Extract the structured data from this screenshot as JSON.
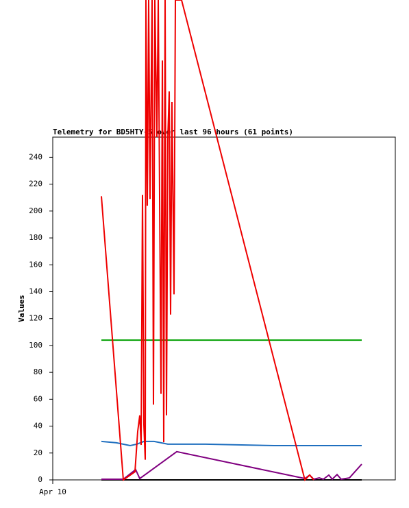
{
  "chart_data": {
    "type": "line",
    "title": "Telemetry for BD5HTY-5 over last 96 hours (61 points)",
    "y_label": "Values",
    "xlim": [
      0,
      500
    ],
    "xticks": [
      {
        "value": 0,
        "label": "Apr 10"
      }
    ],
    "ylim": [
      0,
      255
    ],
    "yticks": [
      0,
      20,
      40,
      60,
      80,
      100,
      120,
      140,
      160,
      180,
      200,
      220,
      240
    ],
    "series": [
      {
        "color": "#000000",
        "x": [
          71,
          451
        ],
        "values": [
          0,
          0
        ]
      },
      {
        "color": "#1f6fbf",
        "x": [
          71,
          93,
          113,
          123,
          133,
          148,
          168,
          223,
          323,
          451
        ],
        "values": [
          28.6,
          27.6,
          25.5,
          26.6,
          28.6,
          28.6,
          26.6,
          26.6,
          25.5,
          25.5
        ]
      },
      {
        "color": "#00a000",
        "x": [
          71,
          451
        ],
        "values": [
          104,
          104
        ]
      },
      {
        "color": "#800080",
        "x": [
          71,
          103,
          121,
          127,
          181,
          368,
          375,
          381,
          389,
          395,
          403,
          408,
          415,
          421,
          433,
          451
        ],
        "values": [
          0.5,
          0.5,
          7.7,
          1,
          21,
          1,
          3.6,
          0.5,
          1.5,
          0.5,
          3.6,
          0.5,
          4,
          0.5,
          1.5,
          11.7
        ]
      },
      {
        "color": "#ee0000",
        "x": [
          71,
          103,
          120,
          124,
          127,
          129,
          131,
          133,
          135,
          136,
          138,
          140,
          142,
          145,
          147,
          149,
          152,
          154,
          158,
          160,
          162,
          164,
          166,
          168,
          170,
          172,
          174,
          177,
          179,
          188,
          368,
          375,
          381
        ],
        "values": [
          211,
          0,
          6,
          36,
          48,
          26,
          212,
          41,
          15,
          357,
          204,
          357,
          209,
          357,
          56,
          357,
          255,
          357,
          64,
          312,
          28,
          357,
          48,
          255,
          289,
          123,
          281,
          138,
          357,
          357,
          0,
          3.6,
          0
        ]
      }
    ]
  }
}
